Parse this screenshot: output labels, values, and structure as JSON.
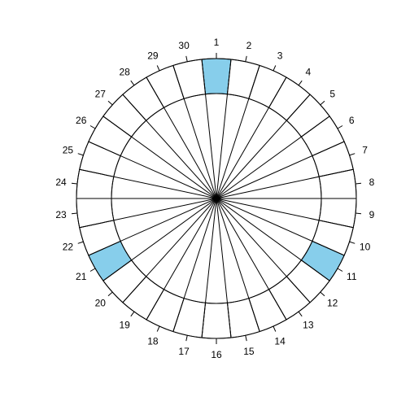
{
  "chart_data": {
    "type": "polar-calendar",
    "title": "",
    "categories": [
      "1",
      "2",
      "3",
      "4",
      "5",
      "6",
      "7",
      "8",
      "9",
      "10",
      "11",
      "12",
      "13",
      "14",
      "15",
      "16",
      "17",
      "18",
      "19",
      "20",
      "21",
      "22",
      "23",
      "24",
      "25",
      "26",
      "27",
      "28",
      "29",
      "30"
    ],
    "highlighted": [
      "1",
      "11",
      "21"
    ],
    "ring_inner_fraction": 0.75,
    "start_label": "1",
    "direction": "clockwise",
    "grid": true,
    "colors": {
      "highlight": "#87ceeb",
      "stroke": "#000000",
      "background": "#ffffff"
    }
  }
}
